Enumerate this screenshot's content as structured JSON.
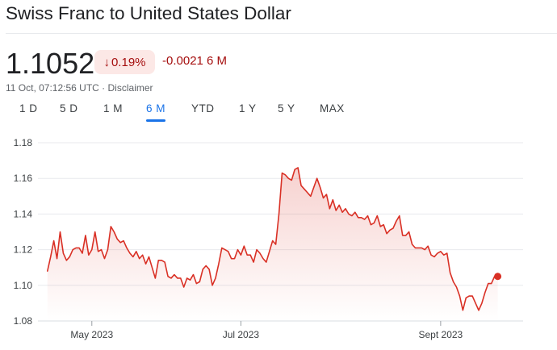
{
  "header": {
    "title": "Swiss Franc to United States Dollar"
  },
  "quote": {
    "price": "1.1052",
    "change_percent": "0.19%",
    "change_direction": "down",
    "change_value": "-0.0021 6 M",
    "timestamp": "11 Oct, 07:12:56 UTC",
    "separator": " · ",
    "disclaimer_label": "Disclaimer"
  },
  "tabs": [
    {
      "label": "1 D",
      "active": false
    },
    {
      "label": "5 D",
      "active": false
    },
    {
      "label": "1 M",
      "active": false
    },
    {
      "label": "6 M",
      "active": true
    },
    {
      "label": "YTD",
      "active": false
    },
    {
      "label": "1 Y",
      "active": false
    },
    {
      "label": "5 Y",
      "active": false
    },
    {
      "label": "MAX",
      "active": false
    }
  ],
  "colors": {
    "line": "#d93025",
    "negative_text": "#a50e0e",
    "badge_bg": "#fce8e6",
    "active_tab": "#1a73e8",
    "grid": "#e8eaed"
  },
  "chart_data": {
    "type": "area",
    "ylim": [
      1.08,
      1.18
    ],
    "yticks": [
      "1.18",
      "1.16",
      "1.14",
      "1.12",
      "1.10",
      "1.08"
    ],
    "xticks": [
      {
        "label": "May 2023",
        "x": 14
      },
      {
        "label": "Jul 2023",
        "x": 61
      },
      {
        "label": "Sept 2023",
        "x": 124
      }
    ],
    "x_range": [
      -3,
      150
    ],
    "grid": true,
    "values": [
      1.108,
      1.116,
      1.125,
      1.115,
      1.13,
      1.118,
      1.114,
      1.116,
      1.12,
      1.121,
      1.121,
      1.118,
      1.128,
      1.117,
      1.12,
      1.13,
      1.119,
      1.12,
      1.115,
      1.12,
      1.133,
      1.13,
      1.126,
      1.124,
      1.125,
      1.121,
      1.118,
      1.116,
      1.119,
      1.115,
      1.117,
      1.112,
      1.116,
      1.11,
      1.104,
      1.114,
      1.114,
      1.113,
      1.105,
      1.104,
      1.106,
      1.104,
      1.104,
      1.099,
      1.104,
      1.103,
      1.106,
      1.101,
      1.102,
      1.109,
      1.111,
      1.109,
      1.1,
      1.104,
      1.112,
      1.121,
      1.12,
      1.119,
      1.115,
      1.115,
      1.12,
      1.117,
      1.122,
      1.117,
      1.117,
      1.113,
      1.12,
      1.118,
      1.115,
      1.113,
      1.119,
      1.125,
      1.123,
      1.14,
      1.163,
      1.162,
      1.16,
      1.159,
      1.165,
      1.166,
      1.156,
      1.154,
      1.152,
      1.15,
      1.155,
      1.16,
      1.155,
      1.149,
      1.151,
      1.143,
      1.148,
      1.142,
      1.145,
      1.141,
      1.143,
      1.14,
      1.139,
      1.141,
      1.138,
      1.138,
      1.137,
      1.139,
      1.134,
      1.135,
      1.139,
      1.133,
      1.134,
      1.129,
      1.131,
      1.132,
      1.136,
      1.139,
      1.128,
      1.128,
      1.13,
      1.123,
      1.121,
      1.121,
      1.121,
      1.12,
      1.122,
      1.117,
      1.116,
      1.118,
      1.119,
      1.117,
      1.118,
      1.107,
      1.102,
      1.099,
      1.094,
      1.086,
      1.093,
      1.094,
      1.094,
      1.09,
      1.086,
      1.09,
      1.096,
      1.101,
      1.101,
      1.105,
      1.105
    ],
    "last_point_marker": true
  }
}
